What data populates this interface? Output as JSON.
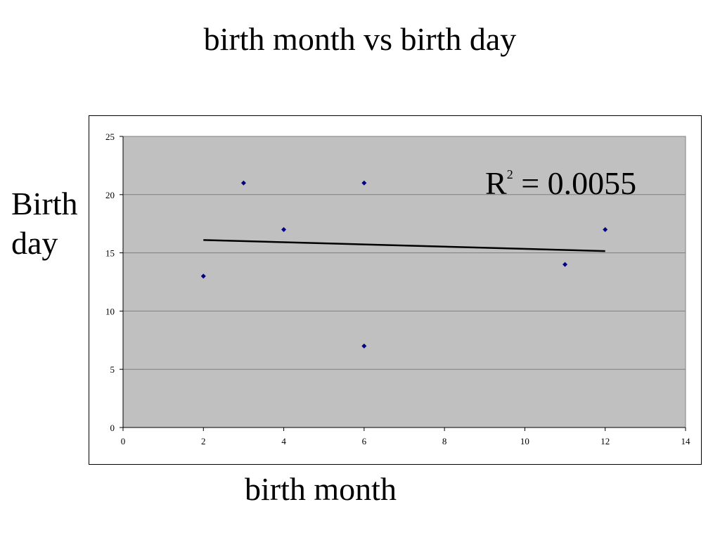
{
  "chart_data": {
    "type": "scatter",
    "title": "birth month vs birth day",
    "xlabel": "birth month",
    "ylabel": "Birth\nday",
    "xlim": [
      0,
      14
    ],
    "ylim": [
      0,
      25
    ],
    "xticks": [
      0,
      2,
      4,
      6,
      8,
      10,
      12,
      14
    ],
    "yticks": [
      0,
      5,
      10,
      15,
      20,
      25
    ],
    "points": [
      {
        "x": 2,
        "y": 13
      },
      {
        "x": 3,
        "y": 21
      },
      {
        "x": 4,
        "y": 17
      },
      {
        "x": 6,
        "y": 21
      },
      {
        "x": 6,
        "y": 7
      },
      {
        "x": 11,
        "y": 14
      },
      {
        "x": 12,
        "y": 17
      }
    ],
    "trendline": {
      "type": "linear",
      "x": [
        2,
        12
      ],
      "y": [
        16.1,
        15.15
      ]
    },
    "annotation": {
      "r_label": "R",
      "exponent": "2",
      "value_text": " = 0.0055"
    },
    "grid": "horizontal",
    "legend": "none",
    "colors": {
      "plot_background": "#c0c0c0",
      "marker": "#000080",
      "gridline": "#7f7f7f",
      "trendline": "#000000"
    }
  }
}
